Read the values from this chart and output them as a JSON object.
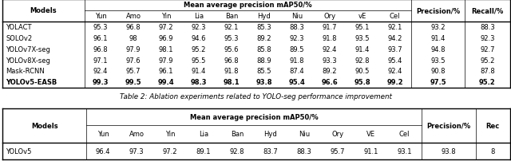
{
  "t1_main_header": "Mean average precision mAP50/%",
  "t1_col0": "Models",
  "t1_sub": [
    "Yun",
    "Amo",
    "Yin",
    "Lia",
    "Ban",
    "Hyd",
    "Niu",
    "Ory",
    "vE",
    "Cel"
  ],
  "t1_extra": [
    "Precision/%",
    "Recall/%"
  ],
  "t1_rows": [
    [
      "YOLACT",
      "95.3",
      "96.8",
      "97.2",
      "92.3",
      "92.1",
      "85.3",
      "88.3",
      "91.7",
      "95.1",
      "92.1",
      "93.2",
      "88.3"
    ],
    [
      "SOLOv2",
      "96.1",
      "98",
      "96.9",
      "94.6",
      "95.3",
      "89.2",
      "92.3",
      "91.8",
      "93.5",
      "94.2",
      "91.4",
      "92.3"
    ],
    [
      "YOLOv7X-seg",
      "96.8",
      "97.9",
      "98.1",
      "95.2",
      "95.6",
      "85.8",
      "89.5",
      "92.4",
      "91.4",
      "93.7",
      "94.8",
      "92.7"
    ],
    [
      "YOLOv8X-seg",
      "97.1",
      "97.6",
      "97.9",
      "95.5",
      "96.8",
      "88.9",
      "91.8",
      "93.3",
      "92.8",
      "95.4",
      "93.5",
      "95.2"
    ],
    [
      "Mask-RCNN",
      "92.4",
      "95.7",
      "96.1",
      "91.4",
      "91.8",
      "85.5",
      "87.4",
      "89.2",
      "90.5",
      "92.4",
      "90.8",
      "87.8"
    ],
    [
      "YOLOv5-EASB",
      "99.3",
      "99.5",
      "99.4",
      "98.3",
      "98.1",
      "93.8",
      "95.4",
      "96.6",
      "95.8",
      "99.2",
      "97.5",
      "95.2"
    ]
  ],
  "t1_bold_row": 5,
  "caption": "Table 2: Ablation experiments related to YOLO-seg performance improvement",
  "t2_main_header": "Mean average precision mAP50/%",
  "t2_col0": "Models",
  "t2_sub": [
    "Yun",
    "Amo",
    "Yin",
    "Lia",
    "Ban",
    "Hyd",
    "Niu",
    "Ory",
    "VE",
    "Cel"
  ],
  "t2_extra": [
    "Precision/%",
    "Rec"
  ],
  "t2_rows": [
    [
      "YOLOv5",
      "96.4",
      "97.3",
      "97.2",
      "89.1",
      "92.8",
      "83.7",
      "88.3",
      "95.7",
      "91.1",
      "93.1",
      "93.8",
      "8"
    ]
  ],
  "t2_bold_row": -1,
  "line_color": "#000000",
  "fontsize": 6.0,
  "lw_thick": 1.0,
  "lw_thin": 0.5,
  "fig_w": 6.4,
  "fig_h": 2.03,
  "dpi": 100,
  "raw_cw": [
    0.135,
    0.054,
    0.054,
    0.054,
    0.054,
    0.054,
    0.054,
    0.054,
    0.054,
    0.054,
    0.054,
    0.088,
    0.075
  ]
}
